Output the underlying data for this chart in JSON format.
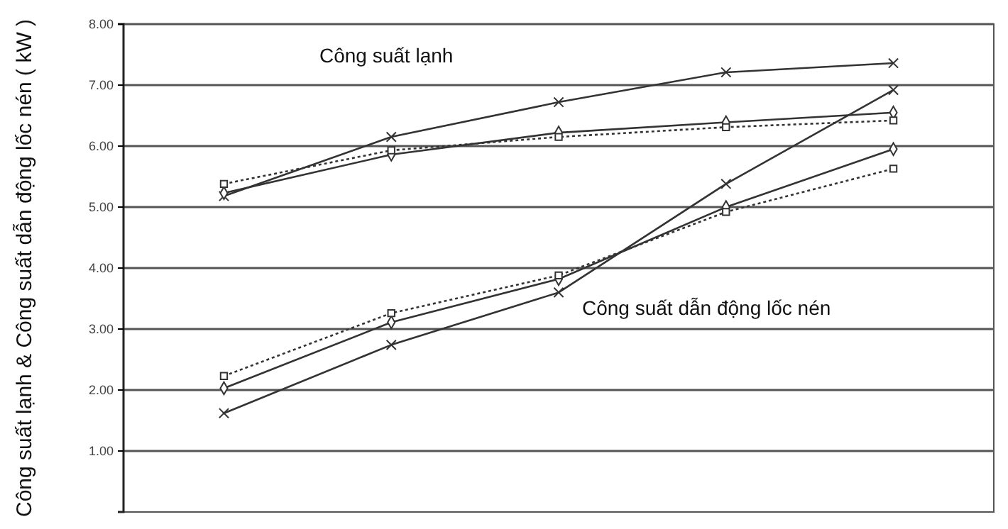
{
  "chart_data": {
    "type": "line",
    "ylabel": "Công suất lạnh & Công suất dẫn động lốc nén ( kW )",
    "categories": [
      null,
      null,
      null,
      null,
      null
    ],
    "series": [
      {
        "color": "#333333",
        "marker": "cross",
        "line_style": "solid",
        "values": [
          5.18,
          6.15,
          6.72,
          7.21,
          7.36
        ]
      },
      {
        "color": "#333333",
        "marker": "diamond",
        "line_style": "solid",
        "values": [
          5.23,
          5.86,
          6.22,
          6.39,
          6.55
        ]
      },
      {
        "color": "#333333",
        "marker": "square",
        "line_style": "dotted",
        "values": [
          5.38,
          5.93,
          6.15,
          6.31,
          6.42
        ]
      },
      {
        "color": "#333333",
        "marker": "cross",
        "line_style": "solid",
        "values": [
          1.62,
          2.74,
          3.6,
          5.38,
          6.92
        ]
      },
      {
        "color": "#333333",
        "marker": "diamond",
        "line_style": "solid",
        "values": [
          2.03,
          3.11,
          3.82,
          5.0,
          5.95
        ]
      },
      {
        "color": "#333333",
        "marker": "square",
        "line_style": "dotted",
        "values": [
          2.23,
          3.26,
          3.88,
          4.92,
          5.63
        ]
      }
    ],
    "annotations": [
      "Công suất lạnh",
      "Công suất dẫn động lốc nén"
    ],
    "ylim": [
      0,
      8
    ],
    "yticks": [
      {
        "value": 1,
        "label": "1.00"
      },
      {
        "value": 2,
        "label": "2.00"
      },
      {
        "value": 3,
        "label": "3.00"
      },
      {
        "value": 4,
        "label": "4.00"
      },
      {
        "value": 5,
        "label": "5.00"
      },
      {
        "value": 6,
        "label": "6.00"
      },
      {
        "value": 7,
        "label": "7.00"
      },
      {
        "value": 8,
        "label": "8.00"
      }
    ],
    "grid": "y",
    "tick_labels": "y"
  }
}
